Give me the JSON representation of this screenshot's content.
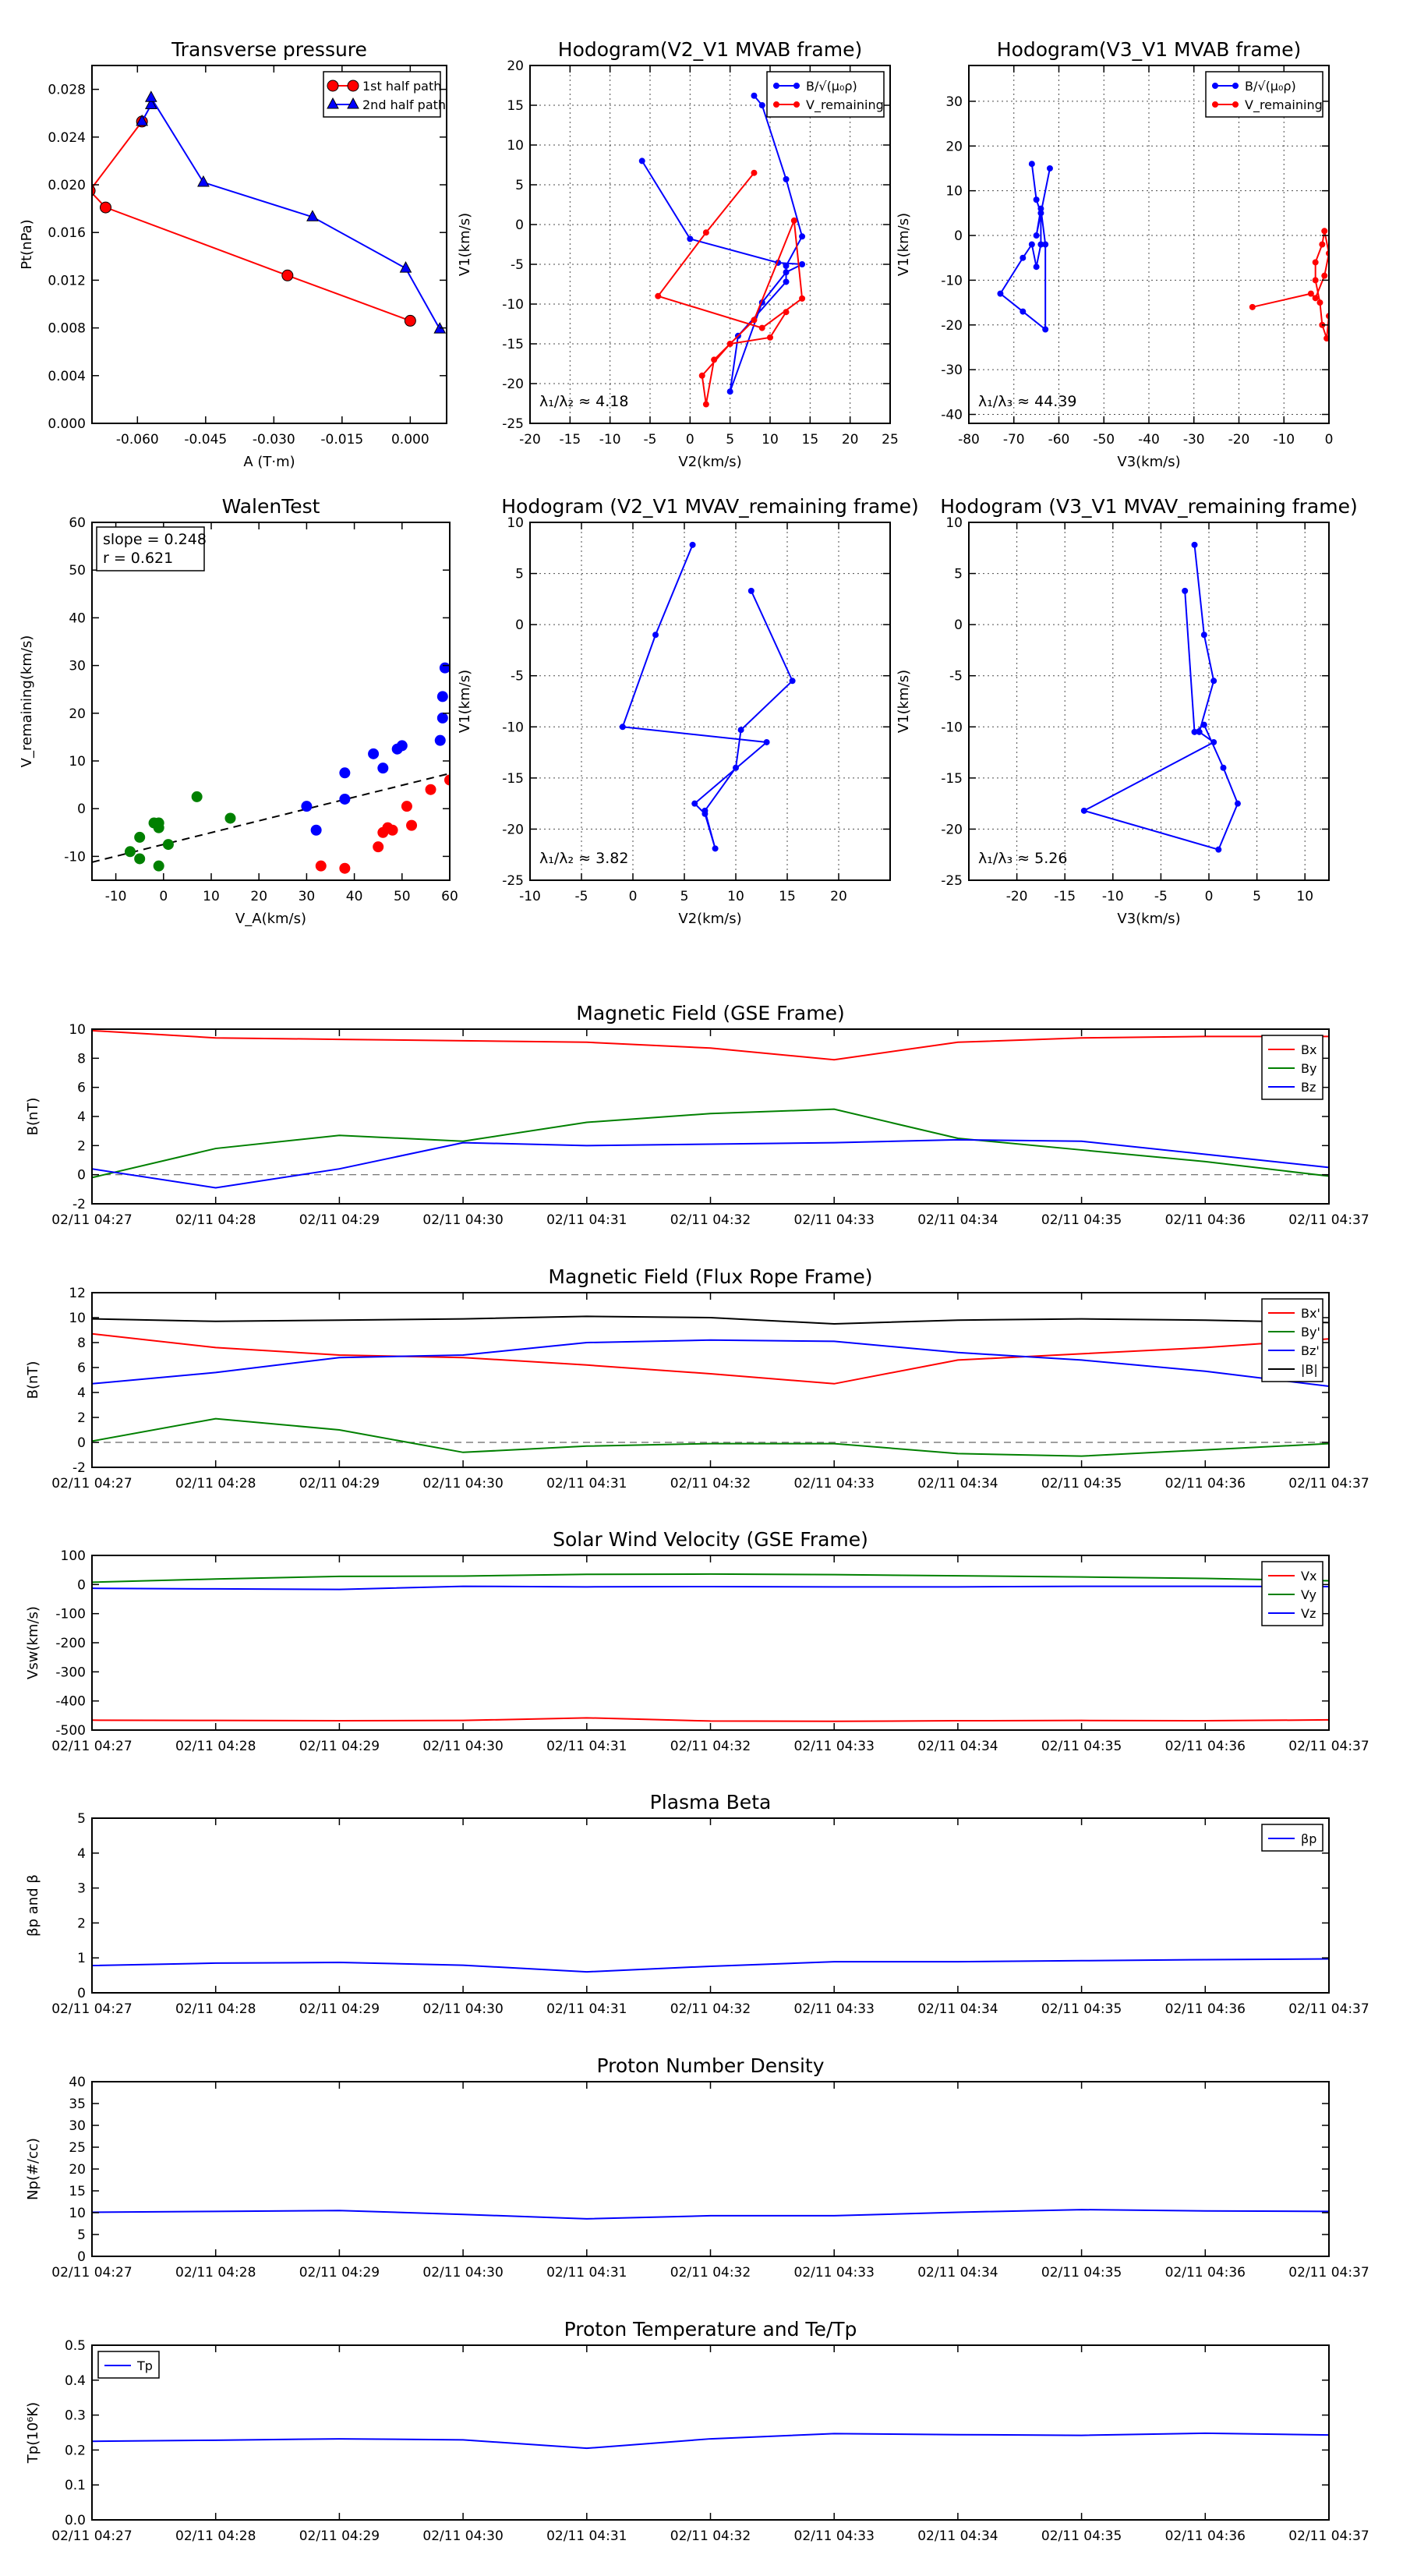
{
  "time_labels": [
    "02/11 04:27",
    "02/11 04:28",
    "02/11 04:29",
    "02/11 04:30",
    "02/11 04:31",
    "02/11 04:32",
    "02/11 04:33",
    "02/11 04:34",
    "02/11 04:35",
    "02/11 04:36",
    "02/11 04:37"
  ],
  "chart_data": [
    {
      "id": "transverse-pressure",
      "type": "line",
      "title": "Transverse pressure",
      "xlabel": "A (T·m)",
      "ylabel": "Pt(nPa)",
      "xlim": [
        -0.07,
        0.008
      ],
      "ylim": [
        0,
        0.03
      ],
      "xticks": [
        -0.06,
        -0.045,
        -0.03,
        -0.015,
        0.0
      ],
      "xtick_labels": [
        "-0.060",
        "-0.045",
        "-0.030",
        "-0.015",
        "0.000"
      ],
      "yticks": [
        0,
        0.004,
        0.008,
        0.012,
        0.016,
        0.02,
        0.024,
        0.028
      ],
      "ytick_labels": [
        "0.000",
        "0.004",
        "0.008",
        "0.012",
        "0.016",
        "0.020",
        "0.024",
        "0.028"
      ],
      "grid": false,
      "legend": "top-right",
      "series": [
        {
          "name": "1st half path",
          "color": "#ff0000",
          "marker": "circle",
          "x": [
            0.0,
            -0.027,
            -0.067,
            -0.0705,
            -0.059
          ],
          "y": [
            0.0086,
            0.0124,
            0.0181,
            0.0195,
            0.0253
          ]
        },
        {
          "name": "2nd half path",
          "color": "#0000ff",
          "marker": "triangle",
          "x": [
            -0.059,
            -0.057,
            -0.057,
            -0.0455,
            -0.0215,
            -0.001,
            0.0065
          ],
          "y": [
            0.0253,
            0.0267,
            0.0273,
            0.0202,
            0.0173,
            0.013,
            0.0079
          ]
        }
      ]
    },
    {
      "id": "hodogram-v2-v1-mvab",
      "type": "line",
      "title": "Hodogram(V2_V1 MVAB frame)",
      "xlabel": "V2(km/s)",
      "ylabel": "V1(km/s)",
      "xlim": [
        -20,
        25
      ],
      "ylim": [
        -25,
        20
      ],
      "xticks": [
        -20,
        -15,
        -10,
        -5,
        0,
        5,
        10,
        15,
        20,
        25
      ],
      "yticks": [
        -25,
        -20,
        -15,
        -10,
        -5,
        0,
        5,
        10,
        15,
        20
      ],
      "grid": true,
      "legend": "top-right",
      "annotation": "λ₁/λ₂ ≈ 4.18",
      "series": [
        {
          "name": "B/√(μ₀ρ)",
          "color": "#0000ff",
          "x": [
            8,
            9,
            12,
            14,
            12,
            12,
            6,
            5,
            9,
            12,
            14,
            11,
            0,
            -6
          ],
          "y": [
            16.2,
            15,
            5.7,
            -1.5,
            -5.2,
            -7.2,
            -14,
            -21,
            -9.8,
            -6,
            -5,
            -4.8,
            -1.8,
            8
          ]
        },
        {
          "name": "V_remaining",
          "color": "#ff0000",
          "x": [
            8,
            2,
            -4,
            9,
            14,
            13,
            8,
            3,
            2,
            1.5,
            5,
            10,
            12
          ],
          "y": [
            6.5,
            -1,
            -9,
            -13,
            -9.3,
            0.5,
            -12,
            -17,
            -22.6,
            -19,
            -15,
            -14.2,
            -11
          ]
        }
      ]
    },
    {
      "id": "hodogram-v3-v1-mvab",
      "type": "line",
      "title": "Hodogram(V3_V1 MVAB frame)",
      "xlabel": "V3(km/s)",
      "ylabel": "V1(km/s)",
      "xlim": [
        -80,
        0
      ],
      "ylim": [
        -42,
        38
      ],
      "xticks": [
        -80,
        -70,
        -60,
        -50,
        -40,
        -30,
        -20,
        -10,
        0
      ],
      "yticks": [
        -40,
        -30,
        -20,
        -10,
        0,
        10,
        20,
        30
      ],
      "grid": true,
      "legend": "top-right",
      "annotation": "λ₁/λ₃ ≈ 44.39",
      "series": [
        {
          "name": "B/√(μ₀ρ)",
          "color": "#0000ff",
          "x": [
            -66,
            -65,
            -64,
            -64,
            -65,
            -66,
            -68,
            -73,
            -68,
            -63,
            -63,
            -64,
            -65,
            -62
          ],
          "y": [
            16,
            8,
            5,
            -2,
            -7,
            -2,
            -5,
            -13,
            -17,
            -21,
            -2,
            6,
            0,
            15
          ]
        },
        {
          "name": "V_remaining",
          "color": "#ff0000",
          "x": [
            -17,
            -4,
            -3,
            -1,
            0,
            -1,
            -1.5,
            -3,
            -3,
            -2,
            -1.5,
            -0.5,
            0
          ],
          "y": [
            -16,
            -13,
            -14,
            -9,
            -4,
            1,
            -2,
            -6,
            -10,
            -15,
            -20,
            -23,
            -18
          ]
        }
      ]
    },
    {
      "id": "walen-test",
      "type": "scatter",
      "title": "WalenTest",
      "xlabel": "V_A(km/s)",
      "ylabel": "V_remaining(km/s)",
      "xlim": [
        -15,
        60
      ],
      "ylim": [
        -15,
        60
      ],
      "xticks": [
        -10,
        0,
        10,
        20,
        30,
        40,
        50,
        60
      ],
      "yticks": [
        -10,
        0,
        10,
        20,
        30,
        40,
        50,
        60
      ],
      "grid": false,
      "annotation": [
        "slope = 0.248",
        "r = 0.621"
      ],
      "fit_line": {
        "slope": 0.248,
        "intercept": -7.5,
        "color": "#000000",
        "style": "dashed"
      },
      "series": [
        {
          "name": "",
          "color": "#0000ff",
          "x": [
            30,
            32,
            38,
            38,
            44,
            46,
            49,
            50,
            58,
            58.5,
            58.5,
            59
          ],
          "y": [
            0.5,
            -4.5,
            2,
            7.5,
            11.5,
            8.5,
            12.5,
            13.2,
            14.3,
            19,
            23.5,
            29.5
          ]
        },
        {
          "name": "",
          "color": "#ff0000",
          "x": [
            33,
            38,
            45,
            46,
            47,
            48,
            51,
            52,
            56,
            60
          ],
          "y": [
            -12,
            -12.5,
            -8,
            -5,
            -4,
            -4.5,
            0.5,
            -3.5,
            4,
            6
          ]
        },
        {
          "name": "",
          "color": "#008000",
          "x": [
            -7,
            -5,
            -5,
            -2,
            -1,
            -1,
            -1,
            1,
            7,
            14
          ],
          "y": [
            -9,
            -10.5,
            -6,
            -3,
            -12,
            -4,
            -3,
            -7.5,
            2.5,
            -2
          ]
        }
      ]
    },
    {
      "id": "hodogram-v2-v1-mvav",
      "type": "line",
      "title": "Hodogram (V2_V1 MVAV_remaining frame)",
      "xlabel": "V2(km/s)",
      "ylabel": "V1(km/s)",
      "xlim": [
        -10,
        25
      ],
      "ylim": [
        -25,
        10
      ],
      "xticks": [
        -10,
        -5,
        0,
        5,
        10,
        15,
        20
      ],
      "yticks": [
        -25,
        -20,
        -15,
        -10,
        -5,
        0,
        5,
        10
      ],
      "grid": true,
      "annotation": "λ₁/λ₂ ≈ 3.82",
      "series": [
        {
          "name": "",
          "color": "#0000ff",
          "x": [
            5.8,
            2.2,
            -1,
            13,
            6,
            7,
            8,
            7,
            10,
            10.5,
            15.5,
            11.5
          ],
          "y": [
            7.8,
            -1,
            -10,
            -11.5,
            -17.5,
            -18.5,
            -21.9,
            -18.2,
            -14,
            -10.3,
            -5.5,
            3.3
          ]
        }
      ]
    },
    {
      "id": "hodogram-v3-v1-mvav",
      "type": "line",
      "title": "Hodogram (V3_V1 MVAV_remaining frame)",
      "xlabel": "V3(km/s)",
      "ylabel": "V1(km/s)",
      "xlim": [
        -25,
        12.5
      ],
      "ylim": [
        -25,
        10
      ],
      "xticks": [
        -20,
        -15,
        -10,
        -5,
        0,
        5,
        10
      ],
      "yticks": [
        -25,
        -20,
        -15,
        -10,
        -5,
        0,
        5,
        10
      ],
      "grid": true,
      "annotation": "λ₁/λ₃ ≈ 5.26",
      "series": [
        {
          "name": "",
          "color": "#0000ff",
          "x": [
            -1.5,
            -0.5,
            0.5,
            -1,
            0.5,
            -13,
            1,
            3,
            1.5,
            -0.5,
            -1.5,
            -2.5
          ],
          "y": [
            7.8,
            -1,
            -5.5,
            -10.5,
            -11.5,
            -18.2,
            -22,
            -17.5,
            -14,
            -9.8,
            -10.5,
            3.3
          ]
        }
      ]
    },
    {
      "id": "magnetic-field-gse",
      "type": "line",
      "title": "Magnetic Field (GSE Frame)",
      "xlabel": "",
      "ylabel": "B(nT)",
      "ylim": [
        -2,
        10
      ],
      "yticks": [
        -2,
        0,
        2,
        4,
        6,
        8,
        10
      ],
      "grid": false,
      "legend": "top-right",
      "zero_line": true,
      "series": [
        {
          "name": "Bx",
          "color": "#ff0000",
          "values": [
            9.9,
            9.4,
            9.3,
            9.2,
            9.1,
            8.7,
            7.9,
            9.1,
            9.4,
            9.5,
            9.5
          ]
        },
        {
          "name": "By",
          "color": "#008000",
          "values": [
            -0.2,
            1.8,
            2.7,
            2.3,
            3.6,
            4.2,
            4.5,
            2.5,
            1.7,
            0.9,
            -0.1
          ]
        },
        {
          "name": "Bz",
          "color": "#0000ff",
          "values": [
            0.4,
            -0.9,
            0.4,
            2.2,
            2.0,
            2.1,
            2.2,
            2.4,
            2.3,
            1.4,
            0.5
          ]
        }
      ]
    },
    {
      "id": "magnetic-field-flux-rope",
      "type": "line",
      "title": "Magnetic Field (Flux Rope Frame)",
      "xlabel": "",
      "ylabel": "B(nT)",
      "ylim": [
        -2,
        12
      ],
      "yticks": [
        -2,
        0,
        2,
        4,
        6,
        8,
        10,
        12
      ],
      "grid": false,
      "legend": "top-right",
      "zero_line": true,
      "series": [
        {
          "name": "Bx'",
          "color": "#ff0000",
          "values": [
            8.7,
            7.6,
            7.0,
            6.8,
            6.2,
            5.5,
            4.7,
            6.6,
            7.1,
            7.6,
            8.3
          ]
        },
        {
          "name": "By'",
          "color": "#008000",
          "values": [
            0.1,
            1.9,
            1.0,
            -0.8,
            -0.3,
            -0.1,
            -0.1,
            -0.9,
            -1.1,
            -0.6,
            -0.1
          ]
        },
        {
          "name": "Bz'",
          "color": "#0000ff",
          "values": [
            4.7,
            5.6,
            6.8,
            7.0,
            8.0,
            8.2,
            8.1,
            7.2,
            6.6,
            5.7,
            4.5
          ]
        },
        {
          "name": "|B|",
          "color": "#000000",
          "values": [
            9.9,
            9.7,
            9.8,
            9.9,
            10.1,
            10.0,
            9.5,
            9.8,
            9.9,
            9.8,
            9.6
          ]
        }
      ]
    },
    {
      "id": "solar-wind-velocity",
      "type": "line",
      "title": "Solar Wind Velocity (GSE Frame)",
      "xlabel": "",
      "ylabel": "Vsw(km/s)",
      "ylim": [
        -500,
        100
      ],
      "yticks": [
        -500,
        -400,
        -300,
        -200,
        -100,
        0,
        100
      ],
      "grid": false,
      "legend": "top-right",
      "series": [
        {
          "name": "Vx",
          "color": "#ff0000",
          "values": [
            -466,
            -467,
            -468,
            -467,
            -458,
            -469,
            -470,
            -468,
            -467,
            -468,
            -465
          ]
        },
        {
          "name": "Vy",
          "color": "#008000",
          "values": [
            8,
            19,
            28,
            29,
            35,
            36,
            34,
            30,
            26,
            21,
            13
          ]
        },
        {
          "name": "Vz",
          "color": "#0000ff",
          "values": [
            -13,
            -15,
            -17,
            -6,
            -8,
            -7,
            -8,
            -8,
            -6,
            -6,
            -7
          ]
        }
      ]
    },
    {
      "id": "plasma-beta",
      "type": "line",
      "title": "Plasma Beta",
      "xlabel": "",
      "ylabel": "βp and β",
      "ylim": [
        0,
        5
      ],
      "yticks": [
        0,
        1,
        2,
        3,
        4,
        5
      ],
      "grid": false,
      "legend": "top-right",
      "series": [
        {
          "name": "βp",
          "color": "#0000ff",
          "values": [
            0.78,
            0.85,
            0.87,
            0.79,
            0.6,
            0.76,
            0.89,
            0.89,
            0.92,
            0.95,
            0.97
          ]
        }
      ]
    },
    {
      "id": "proton-number-density",
      "type": "line",
      "title": "Proton Number Density",
      "xlabel": "",
      "ylabel": "Np(#/cc)",
      "ylim": [
        0,
        40
      ],
      "yticks": [
        0,
        5,
        10,
        15,
        20,
        25,
        30,
        35,
        40
      ],
      "grid": false,
      "series": [
        {
          "name": "",
          "color": "#0000ff",
          "values": [
            10.1,
            10.3,
            10.5,
            9.6,
            8.6,
            9.3,
            9.3,
            10.1,
            10.7,
            10.4,
            10.3
          ]
        }
      ]
    },
    {
      "id": "proton-temperature",
      "type": "line",
      "title": "Proton Temperature and Te/Tp",
      "xlabel": "",
      "ylabel": "Tp(10⁶K)",
      "ylim": [
        0,
        0.5
      ],
      "yticks": [
        0,
        0.1,
        0.2,
        0.3,
        0.4,
        0.5
      ],
      "ytick_labels": [
        "0.0",
        "0.1",
        "0.2",
        "0.3",
        "0.4",
        "0.5"
      ],
      "grid": false,
      "legend": "top-left",
      "series": [
        {
          "name": "Tp",
          "color": "#0000ff",
          "values": [
            0.225,
            0.228,
            0.232,
            0.229,
            0.205,
            0.232,
            0.247,
            0.244,
            0.242,
            0.248,
            0.243
          ]
        }
      ]
    }
  ]
}
